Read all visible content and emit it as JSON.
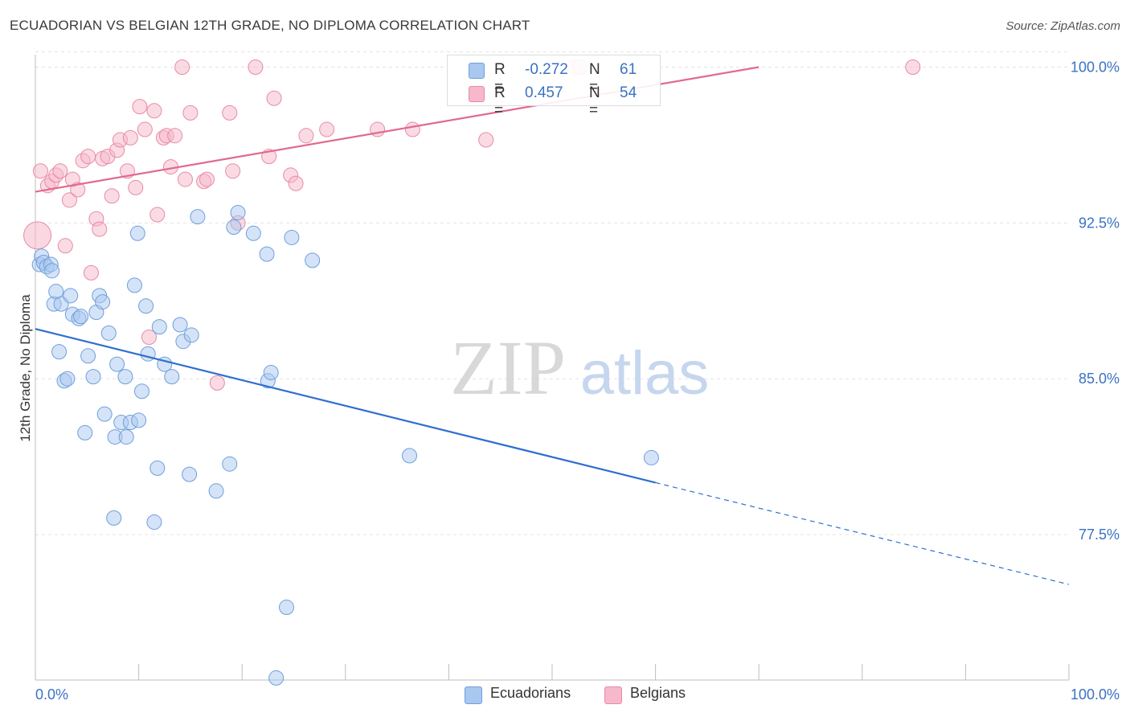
{
  "title": "ECUADORIAN VS BELGIAN 12TH GRADE, NO DIPLOMA CORRELATION CHART",
  "source": "Source: ZipAtlas.com",
  "watermark": {
    "zip": "ZIP",
    "atlas": "atlas"
  },
  "legend": {
    "rows": [
      {
        "r_label": "R =",
        "r_value": "-0.272",
        "n_label": "N =",
        "n_value": "61"
      },
      {
        "r_label": "R =",
        "r_value": "0.457",
        "n_label": "N =",
        "n_value": "54"
      }
    ]
  },
  "bottom_legend": [
    "Ecuadorians",
    "Belgians"
  ],
  "colors": {
    "ecuadorians_fill": "#a9c8f0",
    "ecuadorians_stroke": "#6f9fdc",
    "ecuadorians_line": "#2f6fcf",
    "belgians_fill": "#f6b8ca",
    "belgians_stroke": "#e98aa6",
    "belgians_line": "#e06a90",
    "tick_label": "#3a72c4",
    "grid": "#e3e3e3"
  },
  "chart_data": {
    "type": "scatter",
    "title": "ECUADORIAN VS BELGIAN 12TH GRADE, NO DIPLOMA CORRELATION CHART",
    "xlabel": "",
    "ylabel": "12th Grade, No Diploma",
    "xlim": [
      0,
      100
    ],
    "ylim": [
      70.5,
      100.6
    ],
    "x_tick_labels": [
      "0.0%",
      "100.0%"
    ],
    "y_ticks": [
      77.5,
      85.0,
      92.5,
      100.0
    ],
    "y_tick_labels": [
      "77.5%",
      "85.0%",
      "92.5%",
      "100.0%"
    ],
    "grid": true,
    "legend_position": "top-center",
    "series": [
      {
        "name": "Ecuadorians",
        "r": -0.272,
        "n": 61,
        "trend": {
          "x": [
            0,
            60
          ],
          "y": [
            87.4,
            80.0
          ]
        },
        "trend_extension": {
          "x": [
            60,
            100
          ],
          "y": [
            80.0,
            75.1
          ]
        },
        "points": [
          [
            0.4,
            90.5
          ],
          [
            0.6,
            90.9
          ],
          [
            0.8,
            90.6
          ],
          [
            1.1,
            90.4
          ],
          [
            1.5,
            90.5
          ],
          [
            1.6,
            90.2
          ],
          [
            1.8,
            88.6
          ],
          [
            2.0,
            89.2
          ],
          [
            2.3,
            86.3
          ],
          [
            2.5,
            88.6
          ],
          [
            2.8,
            84.9
          ],
          [
            3.1,
            85.0
          ],
          [
            3.4,
            89.0
          ],
          [
            3.6,
            88.1
          ],
          [
            4.2,
            87.9
          ],
          [
            4.4,
            88.0
          ],
          [
            4.8,
            82.4
          ],
          [
            5.1,
            86.1
          ],
          [
            5.6,
            85.1
          ],
          [
            5.9,
            88.2
          ],
          [
            6.2,
            89.0
          ],
          [
            6.5,
            88.7
          ],
          [
            6.7,
            83.3
          ],
          [
            7.1,
            87.2
          ],
          [
            7.6,
            78.3
          ],
          [
            7.7,
            82.2
          ],
          [
            7.9,
            85.7
          ],
          [
            8.3,
            82.9
          ],
          [
            8.7,
            85.1
          ],
          [
            8.8,
            82.2
          ],
          [
            9.2,
            82.9
          ],
          [
            9.6,
            89.5
          ],
          [
            9.9,
            92.0
          ],
          [
            10.0,
            83.0
          ],
          [
            10.3,
            84.4
          ],
          [
            10.7,
            88.5
          ],
          [
            10.9,
            86.2
          ],
          [
            11.5,
            78.1
          ],
          [
            11.8,
            80.7
          ],
          [
            12.0,
            87.5
          ],
          [
            12.5,
            85.7
          ],
          [
            13.2,
            85.1
          ],
          [
            14.0,
            87.6
          ],
          [
            14.3,
            86.8
          ],
          [
            14.9,
            80.4
          ],
          [
            15.1,
            87.1
          ],
          [
            15.7,
            92.8
          ],
          [
            17.5,
            79.6
          ],
          [
            18.8,
            80.9
          ],
          [
            19.2,
            92.3
          ],
          [
            19.6,
            93.0
          ],
          [
            21.1,
            92.0
          ],
          [
            22.4,
            91.0
          ],
          [
            22.5,
            84.9
          ],
          [
            22.8,
            85.3
          ],
          [
            23.3,
            70.6
          ],
          [
            24.3,
            74.0
          ],
          [
            24.8,
            91.8
          ],
          [
            26.8,
            90.7
          ],
          [
            36.2,
            81.3
          ],
          [
            59.6,
            81.2
          ]
        ]
      },
      {
        "name": "Belgians",
        "r": 0.457,
        "n": 54,
        "trend": {
          "x": [
            0,
            70
          ],
          "y": [
            94.0,
            100.0
          ]
        },
        "points": [
          [
            0.2,
            91.9
          ],
          [
            0.5,
            95.0
          ],
          [
            1.2,
            94.3
          ],
          [
            1.6,
            94.5
          ],
          [
            2.0,
            94.8
          ],
          [
            2.4,
            95.0
          ],
          [
            2.9,
            91.4
          ],
          [
            3.3,
            93.6
          ],
          [
            3.6,
            94.6
          ],
          [
            4.1,
            94.1
          ],
          [
            4.6,
            95.5
          ],
          [
            5.1,
            95.7
          ],
          [
            5.4,
            90.1
          ],
          [
            5.9,
            92.7
          ],
          [
            6.2,
            92.2
          ],
          [
            6.5,
            95.6
          ],
          [
            7.0,
            95.7
          ],
          [
            7.4,
            93.8
          ],
          [
            7.9,
            96.0
          ],
          [
            8.2,
            96.5
          ],
          [
            8.9,
            95.0
          ],
          [
            9.2,
            96.6
          ],
          [
            9.7,
            94.2
          ],
          [
            10.1,
            98.1
          ],
          [
            10.6,
            97.0
          ],
          [
            11.0,
            87.0
          ],
          [
            11.5,
            97.9
          ],
          [
            11.8,
            92.9
          ],
          [
            12.4,
            96.6
          ],
          [
            12.7,
            96.7
          ],
          [
            13.1,
            95.2
          ],
          [
            13.5,
            96.7
          ],
          [
            14.2,
            100.0
          ],
          [
            14.5,
            94.6
          ],
          [
            15.0,
            97.8
          ],
          [
            16.3,
            94.5
          ],
          [
            16.6,
            94.6
          ],
          [
            17.6,
            84.8
          ],
          [
            18.8,
            97.8
          ],
          [
            19.1,
            95.0
          ],
          [
            19.6,
            92.5
          ],
          [
            21.3,
            100.0
          ],
          [
            22.6,
            95.7
          ],
          [
            23.1,
            98.5
          ],
          [
            24.7,
            94.8
          ],
          [
            25.2,
            94.4
          ],
          [
            26.2,
            96.7
          ],
          [
            28.2,
            97.0
          ],
          [
            33.1,
            97.0
          ],
          [
            36.5,
            97.0
          ],
          [
            43.6,
            96.5
          ],
          [
            52.1,
            100.0
          ],
          [
            52.7,
            100.0
          ],
          [
            84.9,
            100.0
          ]
        ]
      }
    ]
  }
}
